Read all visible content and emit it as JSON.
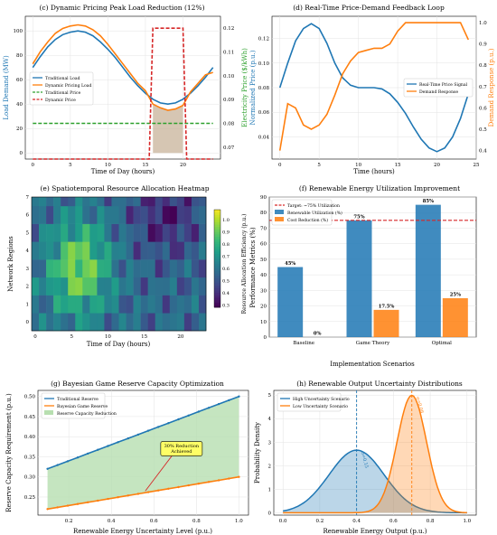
{
  "colors": {
    "blue": "#1f77b4",
    "orange": "#ff7f0e",
    "green": "#2ca02c",
    "red": "#d62728",
    "fill_tan": "#c8b39a",
    "fill_green": "#b7dfb0",
    "grid": "#e3e3e3"
  },
  "chart_data": [
    {
      "id": "c",
      "type": "line",
      "title": "(c) Dynamic Pricing Peak Load Reduction (12%)",
      "xlabel": "Time of Day (hours)",
      "ylabel": "Load Demand (MW)",
      "y2label": "Electricity Price ($/kWh)",
      "xlim": [
        -1,
        25
      ],
      "ylim": [
        -5,
        112
      ],
      "y2lim": [
        0.065,
        0.125
      ],
      "xticks": [
        "0",
        "5",
        "10",
        "15",
        "20"
      ],
      "yticks": [
        "0",
        "20",
        "40",
        "60",
        "80",
        "100"
      ],
      "y2ticks": [
        "0.07",
        "0.08",
        "0.09",
        "0.10",
        "0.11",
        "0.12"
      ],
      "legend": "center-left",
      "series": [
        {
          "name": "Traditional Load",
          "axis": "left",
          "color": "blue",
          "style": "solid",
          "x": [
            0,
            1,
            2,
            3,
            4,
            5,
            6,
            7,
            8,
            9,
            10,
            11,
            12,
            13,
            14,
            15,
            16,
            17,
            18,
            19,
            20,
            21,
            22,
            23,
            24
          ],
          "y": [
            70,
            79,
            87,
            93,
            97,
            99,
            100,
            99,
            96,
            91,
            85,
            78,
            70,
            62,
            55,
            49,
            44,
            41,
            40,
            41,
            44,
            49,
            55,
            62,
            70
          ]
        },
        {
          "name": "Dynamic Pricing Load",
          "axis": "left",
          "color": "orange",
          "style": "solid",
          "x": [
            0,
            1,
            2,
            3,
            4,
            5,
            6,
            7,
            8,
            9,
            10,
            11,
            12,
            13,
            14,
            15,
            16,
            17,
            18,
            19,
            20,
            21,
            22,
            23,
            24
          ],
          "y": [
            73,
            83,
            91,
            98,
            102,
            104,
            105,
            104,
            101,
            96,
            89,
            81,
            73,
            65,
            57,
            51,
            40,
            37,
            35,
            36,
            39,
            50,
            57,
            64,
            66
          ]
        },
        {
          "name": "Traditional Price",
          "axis": "right",
          "color": "green",
          "style": "dashed",
          "x": [
            0,
            24
          ],
          "y": [
            0.08,
            0.08
          ]
        },
        {
          "name": "Dynamic Price",
          "axis": "right",
          "color": "red",
          "style": "dashed",
          "x": [
            0,
            15.5,
            16,
            20,
            20.5,
            24
          ],
          "y": [
            0.065,
            0.065,
            0.12,
            0.12,
            0.065,
            0.065
          ]
        }
      ],
      "fill_between": {
        "x_from": 16,
        "x_to": 20,
        "y_top": [
          40,
          37,
          35,
          36,
          39
        ]
      }
    },
    {
      "id": "d",
      "type": "line",
      "title": "(d) Real-Time Price-Demand Feedback Loop",
      "xlabel": "Time (hours)",
      "ylabel": "Normalized Price (p.u.)",
      "y2label": "Demand Response (p.u.)",
      "xlim": [
        -1,
        25
      ],
      "ylim": [
        0.022,
        0.138
      ],
      "y2lim": [
        0.36,
        1.03
      ],
      "xticks": [
        "0",
        "5",
        "10",
        "15",
        "20",
        "25"
      ],
      "yticks": [
        "0.04",
        "0.06",
        "0.08",
        "0.10",
        "0.12"
      ],
      "y2ticks": [
        "0.4",
        "0.5",
        "0.6",
        "0.7",
        "0.8",
        "0.9",
        "1.0"
      ],
      "legend": "center-right",
      "series": [
        {
          "name": "Real-Time Price Signal",
          "axis": "left",
          "color": "blue",
          "style": "solid",
          "x": [
            0,
            1,
            2,
            3,
            4,
            5,
            6,
            7,
            8,
            9,
            10,
            11,
            12,
            13,
            14,
            15,
            16,
            17,
            18,
            19,
            20,
            21,
            22,
            23,
            24
          ],
          "y": [
            0.08,
            0.1,
            0.118,
            0.128,
            0.132,
            0.128,
            0.116,
            0.1,
            0.088,
            0.082,
            0.08,
            0.08,
            0.08,
            0.079,
            0.075,
            0.068,
            0.059,
            0.048,
            0.038,
            0.031,
            0.028,
            0.031,
            0.04,
            0.055,
            0.075
          ]
        },
        {
          "name": "Demand Response",
          "axis": "right",
          "color": "orange",
          "style": "solid",
          "x": [
            0,
            1,
            2,
            3,
            4,
            5,
            6,
            7,
            8,
            9,
            10,
            11,
            12,
            13,
            14,
            15,
            16,
            17,
            18,
            19,
            20,
            21,
            22,
            23,
            24
          ],
          "y": [
            0.4,
            0.62,
            0.6,
            0.52,
            0.5,
            0.52,
            0.57,
            0.66,
            0.76,
            0.82,
            0.86,
            0.87,
            0.88,
            0.88,
            0.9,
            0.96,
            1.0,
            1.0,
            1.0,
            1.0,
            1.0,
            1.0,
            1.0,
            1.0,
            0.92
          ]
        }
      ]
    },
    {
      "id": "e",
      "type": "heatmap",
      "title": "(e) Spatiotemporal Resource Allocation Heatmap",
      "xlabel": "Time of Day (hours)",
      "ylabel": "Network Regions",
      "colorbar_label": "Resource Allocation Efficiency (p.u.)",
      "xlim": [
        -0.5,
        23.5
      ],
      "ylim": [
        -0.5,
        7.0
      ],
      "xticks": [
        "0",
        "5",
        "10",
        "15",
        "20"
      ],
      "yticks": [
        "0",
        "1",
        "2",
        "3",
        "4",
        "5",
        "6",
        "7"
      ],
      "cbar_range": [
        0.28,
        1.08
      ],
      "cbar_ticks": [
        "0.3",
        "0.4",
        "0.5",
        "0.6",
        "0.7",
        "0.8",
        "0.9",
        "1.0"
      ]
    },
    {
      "id": "f",
      "type": "bar",
      "title": "(f) Renewable Energy Utilization Improvement",
      "xlabel": "Implementation Scenarios",
      "ylabel": "Performance Metrics (%)",
      "categories": [
        "Baseline",
        "Game Theory",
        "Optimal"
      ],
      "ylim": [
        0,
        90
      ],
      "yticks": [
        "0",
        "10",
        "20",
        "30",
        "40",
        "50",
        "60",
        "70",
        "80",
        "90"
      ],
      "target": {
        "name": "Target: ~75% Utilization",
        "value": 75
      },
      "legend": "top-left",
      "series": [
        {
          "name": "Renewable Utilization (%)",
          "color": "blue",
          "values": [
            45,
            75,
            85
          ],
          "labels": [
            "45%",
            "75%",
            "85%"
          ]
        },
        {
          "name": "Cost Reduction (%)",
          "color": "orange",
          "values": [
            0,
            17.5,
            25
          ],
          "labels": [
            "0%",
            "17.5%",
            "25%"
          ]
        }
      ]
    },
    {
      "id": "g",
      "type": "line",
      "title": "(g) Bayesian Game Reserve Capacity Optimization",
      "xlabel": "Renewable Energy Uncertainty Level (p.u.)",
      "ylabel": "Reserve Capacity Requirement (p.u.)",
      "xlim": [
        0.055,
        1.045
      ],
      "ylim": [
        0.205,
        0.515
      ],
      "xticks": [
        "0.2",
        "0.4",
        "0.6",
        "0.8",
        "1.0"
      ],
      "yticks": [
        "0.25",
        "0.30",
        "0.35",
        "0.40",
        "0.45",
        "0.50"
      ],
      "legend": "top-left",
      "series": [
        {
          "name": "Traditional Reserve",
          "color": "blue",
          "x_from": 0.1,
          "x_to": 1.0,
          "y_from": 0.32,
          "y_to": 0.5,
          "points": 20
        },
        {
          "name": "Bayesian Game Reserve",
          "color": "orange",
          "x_from": 0.1,
          "x_to": 1.0,
          "y_from": 0.22,
          "y_to": 0.3,
          "points": 20
        }
      ],
      "fill_label": "Reserve Capacity Reduction",
      "annotation": {
        "lines": [
          "30% Reduction",
          "Achieved"
        ],
        "text_at": [
          0.73,
          0.37
        ],
        "arrow_to": [
          0.56,
          0.265
        ]
      }
    },
    {
      "id": "h",
      "type": "area",
      "title": "(h) Renewable Output Uncertainty Distributions",
      "xlabel": "Renewable Energy Output (p.u.)",
      "ylabel": "Probability Density",
      "xlim": [
        -0.05,
        1.05
      ],
      "ylim": [
        -0.1,
        5.2
      ],
      "xticks": [
        "0.0",
        "0.2",
        "0.4",
        "0.6",
        "0.8",
        "1.0"
      ],
      "yticks": [
        "0",
        "1",
        "2",
        "3",
        "4",
        "5"
      ],
      "legend": "top-left",
      "series": [
        {
          "name": "High Uncertainty Scenario",
          "color": "blue",
          "mean": 0.4,
          "sd": 0.15,
          "peak": 2.66,
          "label": "σ=0.15"
        },
        {
          "name": "Low Uncertainty Scenario",
          "color": "orange",
          "mean": 0.7,
          "sd": 0.08,
          "peak": 4.99,
          "label": "σ=0.08"
        }
      ]
    }
  ]
}
